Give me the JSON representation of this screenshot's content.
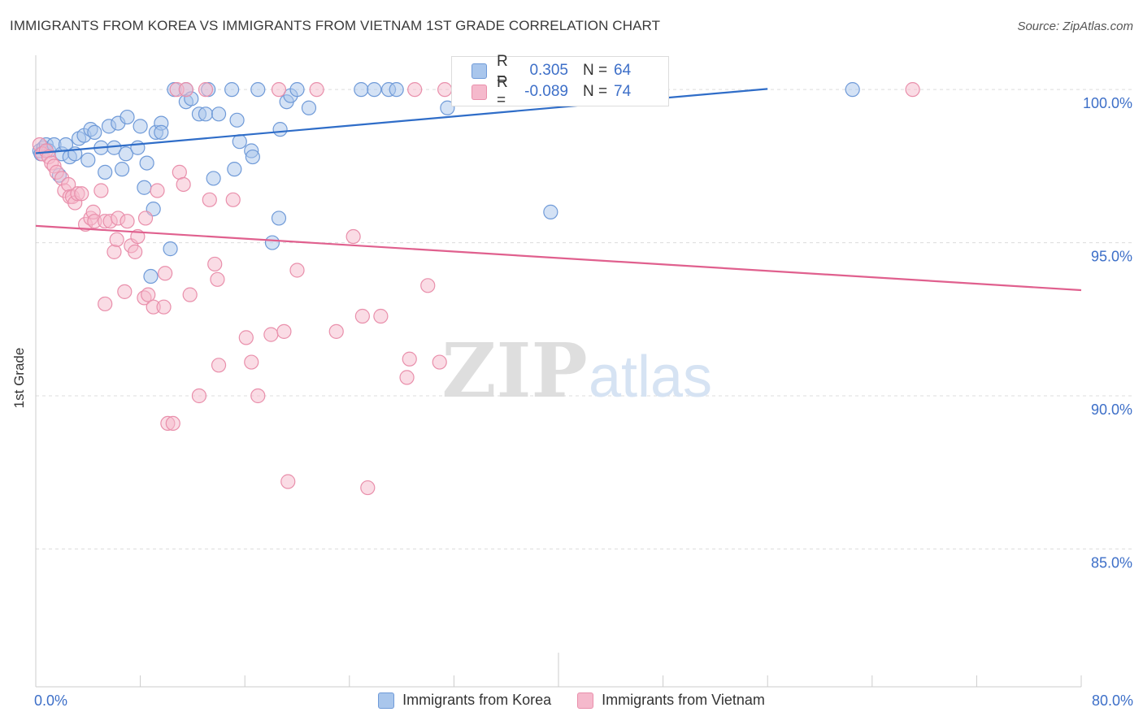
{
  "header": {
    "title": "IMMIGRANTS FROM KOREA VS IMMIGRANTS FROM VIETNAM 1ST GRADE CORRELATION CHART",
    "source": "Source: ZipAtlas.com"
  },
  "legend_top": {
    "rows": [
      {
        "r_label": "R =",
        "r_value": "0.305",
        "n_label": "N =",
        "n_value": "64"
      },
      {
        "r_label": "R =",
        "r_value": "-0.089",
        "n_label": "N =",
        "n_value": "74"
      }
    ]
  },
  "legend_bottom": {
    "korea": "Immigrants from Korea",
    "vietnam": "Immigrants from Vietnam"
  },
  "watermark": {
    "zip": "ZIP",
    "atlas": "atlas"
  },
  "colors": {
    "korea_fill": "#a9c6ec",
    "korea_stroke": "#6f9ad8",
    "korea_line": "#2f6dc8",
    "vietnam_fill": "#f5b9cc",
    "vietnam_stroke": "#e98fab",
    "vietnam_line": "#e0608e",
    "axis_text": "#3d6fc8",
    "grid": "#dcdcdc"
  },
  "chart_data": {
    "type": "scatter",
    "title": "IMMIGRANTS FROM KOREA VS IMMIGRANTS FROM VIETNAM 1ST GRADE CORRELATION CHART",
    "xlabel": "",
    "ylabel": "1st Grade",
    "xlim": [
      0,
      80
    ],
    "ylim": [
      80.5,
      100.8
    ],
    "x_tick_labels": [
      "0.0%",
      "80.0%"
    ],
    "y_ticks": [
      85,
      90,
      95,
      100
    ],
    "y_tick_labels": [
      "85.0%",
      "90.0%",
      "95.0%",
      "100.0%"
    ],
    "grid": true,
    "legend_position": "top-center",
    "series": [
      {
        "name": "Immigrants from Korea",
        "color": "#6f9ad8",
        "R": 0.305,
        "N": 64,
        "trend": {
          "x": [
            0,
            56
          ],
          "y": [
            97.92,
            100.02
          ]
        },
        "points": [
          [
            0.3,
            98.0
          ],
          [
            0.4,
            97.9
          ],
          [
            0.6,
            98.1
          ],
          [
            0.8,
            98.2
          ],
          [
            1.0,
            98.0
          ],
          [
            1.4,
            98.2
          ],
          [
            1.8,
            97.2
          ],
          [
            2.0,
            97.9
          ],
          [
            2.3,
            98.2
          ],
          [
            2.6,
            97.8
          ],
          [
            3.0,
            97.9
          ],
          [
            3.3,
            98.4
          ],
          [
            3.7,
            98.5
          ],
          [
            4.0,
            97.7
          ],
          [
            4.2,
            98.7
          ],
          [
            4.5,
            98.6
          ],
          [
            5.0,
            98.1
          ],
          [
            5.3,
            97.3
          ],
          [
            5.6,
            98.8
          ],
          [
            6.0,
            98.1
          ],
          [
            6.3,
            98.9
          ],
          [
            6.6,
            97.4
          ],
          [
            6.9,
            97.9
          ],
          [
            7.0,
            99.1
          ],
          [
            7.8,
            98.1
          ],
          [
            8.0,
            98.8
          ],
          [
            8.3,
            96.8
          ],
          [
            8.5,
            97.6
          ],
          [
            9.0,
            96.1
          ],
          [
            8.8,
            93.9
          ],
          [
            9.2,
            98.6
          ],
          [
            9.6,
            98.9
          ],
          [
            9.6,
            98.6
          ],
          [
            10.3,
            94.8
          ],
          [
            10.6,
            100.0
          ],
          [
            11.5,
            100.0
          ],
          [
            11.5,
            99.6
          ],
          [
            11.9,
            99.7
          ],
          [
            12.5,
            99.2
          ],
          [
            13.0,
            99.2
          ],
          [
            13.2,
            100.0
          ],
          [
            13.6,
            97.1
          ],
          [
            14.0,
            99.2
          ],
          [
            15.0,
            100.0
          ],
          [
            15.2,
            97.4
          ],
          [
            15.4,
            99.0
          ],
          [
            15.6,
            98.3
          ],
          [
            16.5,
            98.0
          ],
          [
            16.6,
            97.8
          ],
          [
            17.0,
            100.0
          ],
          [
            18.1,
            95.0
          ],
          [
            18.6,
            95.8
          ],
          [
            18.7,
            98.7
          ],
          [
            19.2,
            99.6
          ],
          [
            19.5,
            99.8
          ],
          [
            20.0,
            100.0
          ],
          [
            20.9,
            99.4
          ],
          [
            24.9,
            100.0
          ],
          [
            25.9,
            100.0
          ],
          [
            27.0,
            100.0
          ],
          [
            27.6,
            100.0
          ],
          [
            31.5,
            99.4
          ],
          [
            39.4,
            96.0
          ],
          [
            62.5,
            100.0
          ]
        ]
      },
      {
        "name": "Immigrants from Vietnam",
        "color": "#e98fab",
        "R": -0.089,
        "N": 74,
        "trend": {
          "x": [
            0,
            80
          ],
          "y": [
            95.55,
            93.45
          ]
        },
        "points": [
          [
            0.3,
            98.2
          ],
          [
            0.5,
            97.9
          ],
          [
            0.8,
            98.0
          ],
          [
            1.0,
            97.8
          ],
          [
            1.2,
            97.6
          ],
          [
            1.4,
            97.5
          ],
          [
            1.6,
            97.3
          ],
          [
            2.0,
            97.1
          ],
          [
            2.2,
            96.7
          ],
          [
            2.5,
            96.9
          ],
          [
            2.6,
            96.5
          ],
          [
            2.8,
            96.5
          ],
          [
            3.0,
            96.3
          ],
          [
            3.2,
            96.6
          ],
          [
            3.5,
            96.6
          ],
          [
            3.8,
            95.6
          ],
          [
            4.2,
            95.8
          ],
          [
            4.4,
            96.0
          ],
          [
            4.5,
            95.7
          ],
          [
            5.0,
            96.7
          ],
          [
            5.3,
            95.7
          ],
          [
            5.3,
            93.0
          ],
          [
            5.7,
            95.7
          ],
          [
            6.0,
            94.7
          ],
          [
            6.2,
            95.1
          ],
          [
            6.3,
            95.8
          ],
          [
            6.8,
            93.4
          ],
          [
            7.0,
            95.7
          ],
          [
            7.3,
            94.9
          ],
          [
            7.6,
            94.7
          ],
          [
            7.8,
            95.2
          ],
          [
            8.3,
            93.2
          ],
          [
            8.4,
            95.8
          ],
          [
            8.6,
            93.3
          ],
          [
            9.0,
            92.9
          ],
          [
            9.3,
            96.7
          ],
          [
            9.8,
            92.9
          ],
          [
            9.9,
            94.0
          ],
          [
            10.1,
            89.1
          ],
          [
            10.5,
            89.1
          ],
          [
            10.8,
            100.0
          ],
          [
            11.0,
            97.3
          ],
          [
            11.3,
            96.9
          ],
          [
            11.5,
            100.0
          ],
          [
            11.8,
            93.3
          ],
          [
            12.5,
            90.0
          ],
          [
            13.0,
            100.0
          ],
          [
            13.3,
            96.4
          ],
          [
            13.7,
            94.3
          ],
          [
            13.9,
            93.8
          ],
          [
            14.0,
            91.0
          ],
          [
            15.1,
            96.4
          ],
          [
            16.1,
            91.9
          ],
          [
            16.5,
            91.1
          ],
          [
            17.0,
            90.0
          ],
          [
            18.0,
            92.0
          ],
          [
            18.6,
            100.0
          ],
          [
            19.0,
            92.1
          ],
          [
            19.3,
            87.2
          ],
          [
            20.0,
            94.1
          ],
          [
            21.5,
            100.0
          ],
          [
            23.0,
            92.1
          ],
          [
            24.3,
            95.2
          ],
          [
            25.0,
            92.6
          ],
          [
            25.4,
            87.0
          ],
          [
            26.4,
            92.6
          ],
          [
            28.4,
            90.6
          ],
          [
            28.6,
            91.2
          ],
          [
            29.0,
            100.0
          ],
          [
            30.0,
            93.6
          ],
          [
            30.9,
            91.1
          ],
          [
            31.3,
            100.0
          ],
          [
            42.9,
            100.0
          ],
          [
            67.1,
            100.0
          ]
        ]
      }
    ]
  }
}
